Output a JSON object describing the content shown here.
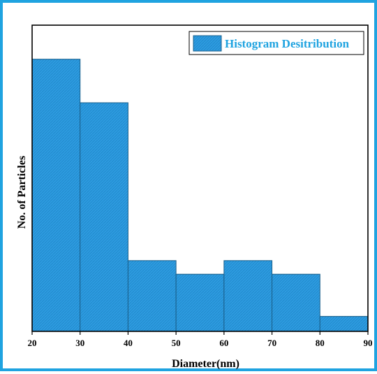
{
  "chart_data": {
    "type": "bar",
    "histogram": true,
    "bin_edges": [
      20,
      30,
      40,
      50,
      60,
      70,
      80,
      90
    ],
    "values": [
      10,
      8.4,
      2.6,
      2.1,
      2.6,
      2.1,
      0.55
    ],
    "series": [
      {
        "name": "Histogram Desitribution",
        "values": [
          10,
          8.4,
          2.6,
          2.1,
          2.6,
          2.1,
          0.55
        ]
      }
    ],
    "xlabel": "Diameter(nm)",
    "ylabel": "No. of Particles",
    "xlim": [
      20,
      90
    ],
    "ylim": [
      0,
      11.25
    ],
    "xticks": [
      "20",
      "30",
      "40",
      "50",
      "60",
      "70",
      "80",
      "90"
    ],
    "yticks_shown": false,
    "grid": false,
    "legend": {
      "position": "top-right",
      "label": "Histogram Desitribution"
    },
    "colors": {
      "bar_fill": "#2d9be0",
      "bar_edge": "#1a5f8a",
      "legend_text": "#1fa3e0",
      "frame": "#1fa3e0"
    }
  }
}
